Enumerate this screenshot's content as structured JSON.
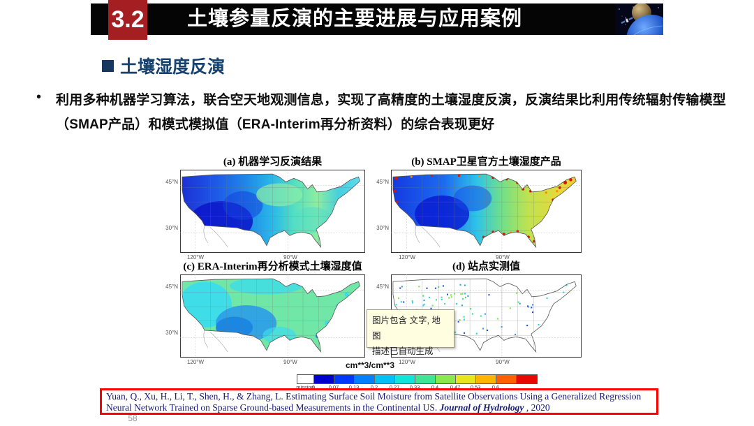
{
  "slide": {
    "header": {
      "section_number": "3.2",
      "title": "土壤参量反演的主要进展与应用案例",
      "accent_red": "#a51e22",
      "bar_black": "#050505"
    },
    "heading": {
      "text": "土壤湿度反演",
      "color": "#17375d"
    },
    "bullet": {
      "marker": "•",
      "text": "利用多种机器学习算法，联合空天地观测信息，实现了高精度的土壤湿度反演，反演结果比利用传统辐射传输模型（SMAP产品）和模式模拟值（ERA-Interim再分析资料）的综合表现更好"
    },
    "page_number": "58"
  },
  "figure": {
    "panels": [
      {
        "id": "a",
        "title": "(a) 机器学习反演结果"
      },
      {
        "id": "b",
        "title": "(b) SMAP卫星官方土壤湿度产品"
      },
      {
        "id": "c",
        "title": "(c) ERA-Interim再分析模式土壤湿度值"
      },
      {
        "id": "d",
        "title": "(d) 站点实测值"
      }
    ],
    "axis": {
      "lat": [
        "45°N",
        "30°N"
      ],
      "lon": [
        "120°W",
        "90°W"
      ]
    },
    "colorbar": {
      "title": "cm**3/cm**3",
      "tick_labels": [
        "missing",
        "0",
        "0.07",
        "0.13",
        "0.2",
        "0.27",
        "0.33",
        "0.4",
        "0.47",
        "0.53",
        "0.6"
      ],
      "cell_colors": [
        "#ffffff",
        "#0000cc",
        "#0038ff",
        "#0080ff",
        "#00c0f8",
        "#10e6d8",
        "#3ce695",
        "#8ae84a",
        "#e6e61e",
        "#ffb400",
        "#ff6000",
        "#e80800"
      ]
    },
    "station_dot_colors": [
      "#1f4fd8",
      "#2e9ee8",
      "#27d3e8",
      "#45dd88",
      "#7fe24f"
    ]
  },
  "tooltip": {
    "line1": "图片包含 文字, 地图",
    "line2": "描述已自动生成",
    "background": "#fffee1"
  },
  "citation": {
    "text_before": "Yuan, Q., Xu, H., Li, T., Shen, H., & Zhang, L. Estimating Surface Soil Moisture from Satellite Observations Using a Generalized Regression Neural Network Trained on Sparse Ground-based Measurements in the Continental US. ",
    "journal": "Journal of Hydrology",
    "text_after": " , 2020",
    "border_color": "#ff0000"
  }
}
